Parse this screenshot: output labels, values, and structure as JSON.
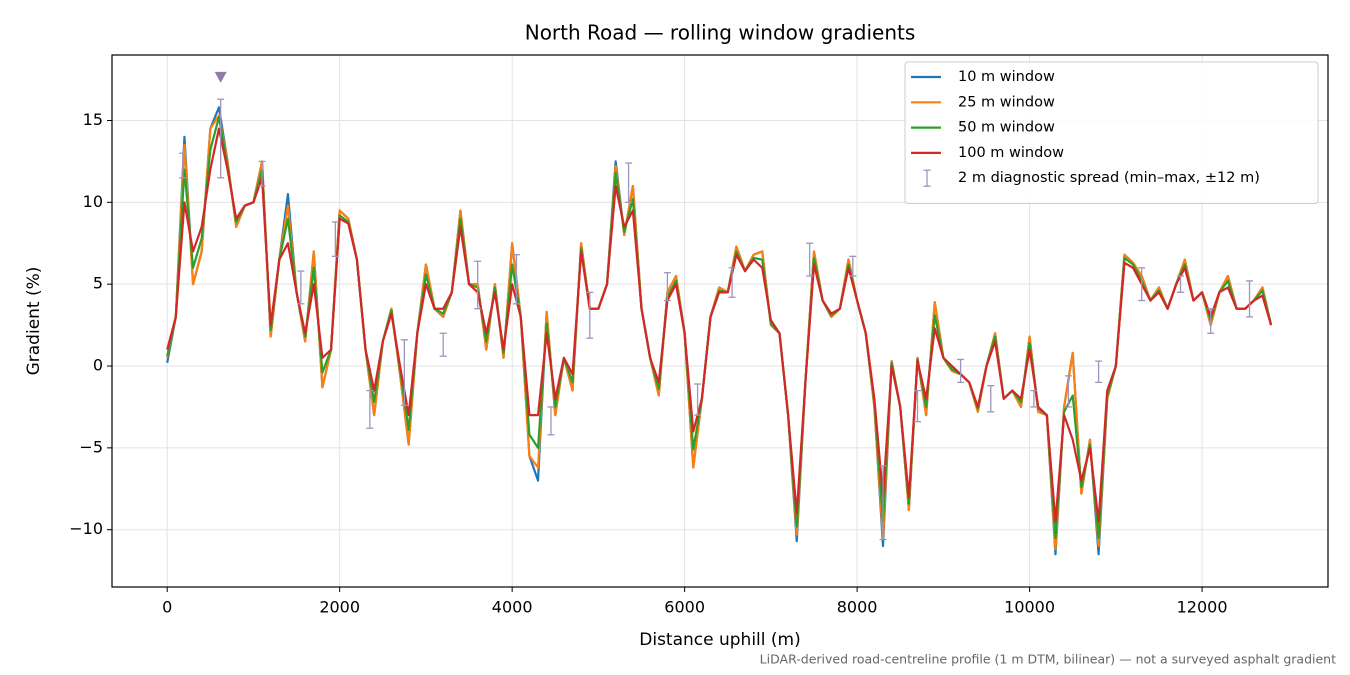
{
  "chart_data": {
    "type": "line",
    "title": "North Road — rolling window gradients",
    "xlabel": "Distance uphill (m)",
    "ylabel": "Gradient (%)",
    "footnote": "LiDAR-derived road-centreline profile (1 m DTM, bilinear) — not a surveyed asphalt gradient",
    "xlim": [
      -640,
      13460
    ],
    "ylim": [
      -13.5,
      19.0
    ],
    "xticks": [
      0,
      2000,
      4000,
      6000,
      8000,
      10000,
      12000
    ],
    "yticks": [
      {
        "value": -10,
        "label": "−10"
      },
      {
        "value": -5,
        "label": "−5"
      },
      0,
      5,
      10,
      15
    ],
    "grid": true,
    "legend": "upper right",
    "x": [
      0,
      100,
      200,
      300,
      400,
      500,
      600,
      700,
      800,
      900,
      1000,
      1100,
      1200,
      1300,
      1400,
      1500,
      1600,
      1700,
      1800,
      1900,
      2000,
      2100,
      2200,
      2300,
      2400,
      2500,
      2600,
      2700,
      2800,
      2900,
      3000,
      3100,
      3200,
      3300,
      3400,
      3500,
      3600,
      3700,
      3800,
      3900,
      4000,
      4100,
      4200,
      4300,
      4400,
      4500,
      4600,
      4700,
      4800,
      4900,
      5000,
      5100,
      5200,
      5300,
      5400,
      5500,
      5600,
      5700,
      5800,
      5900,
      6000,
      6100,
      6200,
      6300,
      6400,
      6500,
      6600,
      6700,
      6800,
      6900,
      7000,
      7100,
      7200,
      7300,
      7400,
      7500,
      7600,
      7700,
      7800,
      7900,
      8000,
      8100,
      8200,
      8300,
      8400,
      8500,
      8600,
      8700,
      8800,
      8900,
      9000,
      9100,
      9200,
      9300,
      9400,
      9500,
      9600,
      9700,
      9800,
      9900,
      10000,
      10100,
      10200,
      10300,
      10400,
      10500,
      10600,
      10700,
      10800,
      10900,
      11000,
      11100,
      11200,
      11300,
      11400,
      11500,
      11600,
      11700,
      11800,
      11900,
      12000,
      12100,
      12200,
      12300,
      12400,
      12500,
      12600,
      12700,
      12800
    ],
    "series": [
      {
        "name": "10 m window",
        "color": "#1f77b4",
        "values": [
          0.2,
          3,
          14,
          5,
          7,
          14.5,
          15.8,
          12.5,
          8.5,
          9.8,
          10,
          12.5,
          1.8,
          6.5,
          10.5,
          4.5,
          1.5,
          7,
          -1.3,
          1,
          9.5,
          9,
          6.5,
          1,
          -3,
          1.5,
          3.5,
          -0.5,
          -4.8,
          2,
          6.2,
          3.5,
          3,
          4.5,
          9.5,
          5,
          5,
          1,
          5,
          0.5,
          7.5,
          3,
          -5.5,
          -7,
          3.3,
          -3,
          0.5,
          -1.5,
          7.5,
          3.5,
          3.5,
          5,
          12.5,
          8,
          11,
          3.5,
          0.5,
          -1.8,
          4.5,
          5.5,
          2,
          -6.2,
          -2,
          3,
          4.8,
          4.5,
          7.3,
          5.8,
          6.8,
          7,
          2.5,
          2,
          -3,
          -10.7,
          -1,
          7,
          4,
          3,
          3.5,
          6.5,
          4,
          2,
          -2.5,
          -11,
          0.3,
          -2.5,
          -8.8,
          0.5,
          -3,
          3.9,
          0.5,
          -0.3,
          -0.5,
          -1,
          -2.8,
          0,
          2,
          -2,
          -1.5,
          -2.5,
          1.8,
          -2.8,
          -3,
          -11.5,
          -2.5,
          0.8,
          -7.8,
          -4.5,
          -11.5,
          -2,
          0,
          6.8,
          6.3,
          5.5,
          4,
          4.8,
          3.5,
          5,
          6.5,
          4,
          4.5,
          2.5,
          4.5,
          5.5,
          3.5,
          3.5,
          4,
          4.8,
          2.5
        ]
      },
      {
        "name": "25 m window",
        "color": "#ff7f0e",
        "values": [
          0.5,
          3,
          13.5,
          5,
          7,
          14.5,
          15.3,
          12.5,
          8.5,
          9.8,
          10,
          12.5,
          1.8,
          6.5,
          9.8,
          4.5,
          1.5,
          7,
          -1.3,
          1,
          9.5,
          9,
          6.5,
          1,
          -3,
          1.5,
          3.5,
          -0.5,
          -4.8,
          2,
          6.2,
          3.5,
          3,
          4.5,
          9.5,
          5,
          5,
          1,
          5,
          0.5,
          7.5,
          3,
          -5.5,
          -6.2,
          3.3,
          -3,
          0.5,
          -1.5,
          7.5,
          3.5,
          3.5,
          5,
          12.2,
          8,
          11,
          3.5,
          0.5,
          -1.8,
          4.5,
          5.5,
          2,
          -6.2,
          -2,
          3,
          4.8,
          4.5,
          7.3,
          5.8,
          6.8,
          7,
          2.5,
          2,
          -3,
          -10.3,
          -1,
          7,
          4,
          3,
          3.5,
          6.5,
          4,
          2,
          -2.5,
          -10.5,
          0.3,
          -2.5,
          -8.8,
          0.5,
          -3,
          3.9,
          0.5,
          -0.3,
          -0.5,
          -1,
          -2.8,
          0,
          2,
          -2,
          -1.5,
          -2.5,
          1.8,
          -2.8,
          -3,
          -11.2,
          -2.5,
          0.8,
          -7.8,
          -4.5,
          -11,
          -2,
          0,
          6.8,
          6.3,
          5.5,
          4,
          4.8,
          3.5,
          5,
          6.5,
          4,
          4.5,
          2.5,
          4.5,
          5.5,
          3.5,
          3.5,
          4,
          4.8,
          2.5
        ]
      },
      {
        "name": "50 m window",
        "color": "#2ca02c",
        "values": [
          0.6,
          3,
          12,
          6,
          7.8,
          13.2,
          15.2,
          12.2,
          8.8,
          9.8,
          10,
          12,
          2.2,
          6.5,
          9,
          4.5,
          1.8,
          6,
          -0.4,
          1,
          9.2,
          8.8,
          6.5,
          1,
          -2.2,
          1.5,
          3.4,
          -0.2,
          -3.9,
          2,
          5.6,
          3.5,
          3.2,
          4.5,
          9,
          5,
          4.8,
          1.5,
          4.8,
          0.8,
          6.2,
          3,
          -4.2,
          -5,
          2.6,
          -2.5,
          0.5,
          -1,
          7.2,
          3.5,
          3.5,
          5,
          11.8,
          8.2,
          10.2,
          3.5,
          0.5,
          -1.4,
          4.2,
          5.2,
          2,
          -5.1,
          -2,
          3,
          4.6,
          4.5,
          7,
          5.8,
          6.6,
          6.5,
          2.6,
          2,
          -3,
          -9.8,
          -1,
          6.6,
          4,
          3.1,
          3.5,
          6.2,
          4,
          2,
          -2.2,
          -9.5,
          0.2,
          -2.5,
          -8.4,
          0.4,
          -2.5,
          3.1,
          0.5,
          -0.2,
          -0.5,
          -1,
          -2.6,
          0,
          1.8,
          -2,
          -1.5,
          -2.2,
          1.4,
          -2.6,
          -3,
          -10.5,
          -2.8,
          -1.8,
          -7.4,
          -4.8,
          -10.5,
          -1.8,
          0,
          6.6,
          6.2,
          5.2,
          4,
          4.6,
          3.5,
          5,
          6.2,
          4,
          4.5,
          2.8,
          4.5,
          5.2,
          3.5,
          3.5,
          4,
          4.6,
          2.5
        ]
      },
      {
        "name": "100 m window",
        "color": "#d62728",
        "values": [
          1,
          3,
          10,
          7,
          8.5,
          12,
          14.5,
          12,
          9,
          9.8,
          10,
          11.5,
          2.5,
          6.5,
          7.5,
          4.5,
          2,
          5,
          0.5,
          1,
          9,
          8.7,
          6.5,
          1,
          -1.5,
          1.5,
          3.2,
          0,
          -3,
          2,
          5,
          3.5,
          3.5,
          4.5,
          8.5,
          5,
          4.5,
          2,
          4.5,
          1,
          5,
          3,
          -3,
          -3,
          2,
          -2,
          0.5,
          -0.5,
          7,
          3.5,
          3.5,
          5,
          11,
          8.5,
          9.5,
          3.5,
          0.5,
          -1,
          4,
          5,
          2,
          -4,
          -2,
          3,
          4.5,
          4.5,
          6.8,
          5.8,
          6.5,
          6,
          2.8,
          2,
          -3,
          -9,
          -1,
          6.2,
          4,
          3.2,
          3.5,
          6,
          4,
          2,
          -2,
          -8,
          0,
          -2.5,
          -8,
          0.3,
          -2,
          2.3,
          0.5,
          0,
          -0.5,
          -1,
          -2.5,
          0,
          1.5,
          -2,
          -1.5,
          -2,
          1,
          -2.5,
          -3,
          -9.5,
          -3,
          -4.5,
          -7,
          -5,
          -9.5,
          -1.5,
          0,
          6.3,
          6,
          5,
          4,
          4.5,
          3.5,
          5,
          6,
          4,
          4.5,
          3,
          4.5,
          4.8,
          3.5,
          3.5,
          4,
          4.3,
          2.5
        ]
      }
    ],
    "errorbars": {
      "name": "2 m diagnostic spread (min–max, ±12 m)",
      "color": "#9d95bc",
      "x": [
        180,
        620,
        1100,
        1550,
        1950,
        2350,
        2750,
        3200,
        3600,
        4050,
        4450,
        4900,
        5350,
        5800,
        6150,
        6550,
        7450,
        7950,
        8300,
        8700,
        9200,
        9550,
        10050,
        10450,
        10800,
        11300,
        11750,
        12100,
        12550
      ],
      "low": [
        11.5,
        11.5,
        11,
        3.8,
        6.7,
        -3.8,
        -2.4,
        0.6,
        3.5,
        3.8,
        -4.2,
        1.7,
        10,
        4,
        -3,
        4.2,
        5.5,
        5.5,
        -10.6,
        -3.4,
        -1,
        -2.8,
        -2.5,
        -2.5,
        -1,
        4,
        4.5,
        2,
        3
      ],
      "high": [
        13,
        16.3,
        12.5,
        5.8,
        8.8,
        -1.5,
        1.6,
        2,
        6.4,
        6.8,
        -2.5,
        4.5,
        12.4,
        5.7,
        -1.1,
        6,
        7.5,
        6.7,
        -6.1,
        -1.5,
        0.4,
        -1.2,
        -1.5,
        -0.6,
        0.3,
        6,
        5.5,
        3.5,
        5.2
      ]
    },
    "peak_marker": {
      "x": 620,
      "y": 17.6,
      "color": "#8e7cab"
    }
  }
}
